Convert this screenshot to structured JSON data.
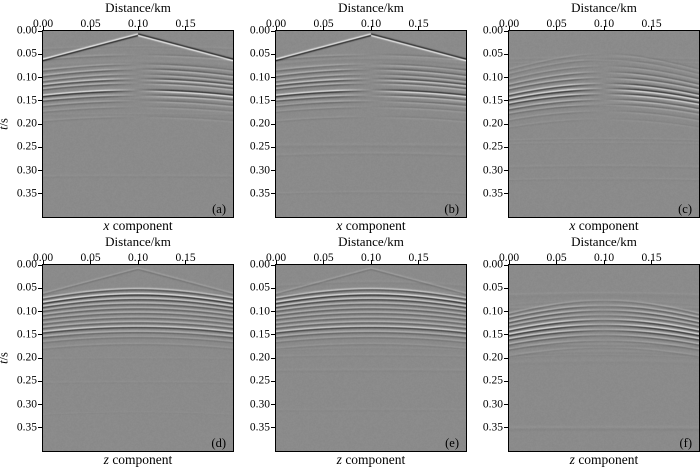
{
  "figure": {
    "x_axis": {
      "label": "Distance/km",
      "ticks": [
        "0.00",
        "0.05",
        "0.10",
        "0.15"
      ],
      "range": [
        0.0,
        0.2
      ]
    },
    "y_axis": {
      "label_italic": "t",
      "label_rest": "/s",
      "ticks": [
        "0.00",
        "0.05",
        "0.10",
        "0.15",
        "0.20",
        "0.25",
        "0.30",
        "0.35"
      ],
      "range": [
        0.0,
        0.4
      ]
    },
    "colors": {
      "plot_background": "#8b8b8b",
      "frame": "#000000",
      "text": "#000000",
      "page": "#ffffff"
    }
  },
  "chart_data": {
    "type": "heatmap",
    "subtype": "seismic-shot-gathers",
    "title": "",
    "xlabel": "Distance/km",
    "ylabel": "t/s",
    "x_range_km": [
      0.0,
      0.2
    ],
    "t_range_s": [
      0.0,
      0.4
    ],
    "source_x_km": 0.1,
    "grid": false,
    "legend": false,
    "render": {
      "freq_hz": 95,
      "bg_gray": 139,
      "contrast": 158,
      "noise_events": 9,
      "pixel_noise": 0.018
    },
    "panels": [
      {
        "label": "(a)",
        "component": "x",
        "caption_italic": "x",
        "caption_rest": " component",
        "polarity_flip": true,
        "amplitude_notch": "hard",
        "seed": 11,
        "events": [
          {
            "kind": "v",
            "t0": 0.008,
            "v": 1.85,
            "amp": 1.15
          },
          {
            "kind": "refl",
            "t0": 0.052,
            "v": 3.0,
            "amp": 0.18
          },
          {
            "kind": "refl",
            "t0": 0.072,
            "v": 2.2,
            "amp": 0.3
          },
          {
            "kind": "refl",
            "t0": 0.083,
            "v": 2.0,
            "amp": 0.5
          },
          {
            "kind": "refl",
            "t0": 0.094,
            "v": 1.9,
            "amp": 0.42
          },
          {
            "kind": "refl",
            "t0": 0.104,
            "v": 1.9,
            "amp": 0.75
          },
          {
            "kind": "refl",
            "t0": 0.113,
            "v": 1.85,
            "amp": 0.5
          },
          {
            "kind": "refl",
            "t0": 0.128,
            "v": 1.8,
            "amp": 1.05
          },
          {
            "kind": "refl",
            "t0": 0.139,
            "v": 1.8,
            "amp": 0.55
          },
          {
            "kind": "refl",
            "t0": 0.151,
            "v": 1.75,
            "amp": 0.3
          },
          {
            "kind": "refl",
            "t0": 0.164,
            "v": 1.75,
            "amp": 0.16
          },
          {
            "kind": "refl",
            "t0": 0.185,
            "v": 1.7,
            "amp": 0.1
          }
        ]
      },
      {
        "label": "(b)",
        "component": "x",
        "caption_italic": "x",
        "caption_rest": " component",
        "polarity_flip": true,
        "amplitude_notch": "hard",
        "seed": 23,
        "events": [
          {
            "kind": "v",
            "t0": 0.008,
            "v": 1.85,
            "amp": 1.12
          },
          {
            "kind": "refl",
            "t0": 0.052,
            "v": 3.0,
            "amp": 0.18
          },
          {
            "kind": "refl",
            "t0": 0.072,
            "v": 2.2,
            "amp": 0.3
          },
          {
            "kind": "refl",
            "t0": 0.083,
            "v": 2.0,
            "amp": 0.48
          },
          {
            "kind": "refl",
            "t0": 0.094,
            "v": 1.9,
            "amp": 0.42
          },
          {
            "kind": "refl",
            "t0": 0.104,
            "v": 1.9,
            "amp": 0.74
          },
          {
            "kind": "refl",
            "t0": 0.113,
            "v": 1.85,
            "amp": 0.5
          },
          {
            "kind": "refl",
            "t0": 0.128,
            "v": 1.8,
            "amp": 1.02
          },
          {
            "kind": "refl",
            "t0": 0.139,
            "v": 1.8,
            "amp": 0.55
          },
          {
            "kind": "refl",
            "t0": 0.151,
            "v": 1.75,
            "amp": 0.3
          },
          {
            "kind": "refl",
            "t0": 0.164,
            "v": 1.75,
            "amp": 0.16
          },
          {
            "kind": "refl",
            "t0": 0.185,
            "v": 1.7,
            "amp": 0.1
          }
        ]
      },
      {
        "label": "(c)",
        "component": "x",
        "caption_italic": "x",
        "caption_rest": " component",
        "polarity_flip": true,
        "amplitude_notch": "hard",
        "seed": 37,
        "events": [
          {
            "kind": "refl",
            "t0": 0.05,
            "v": 1.5,
            "amp": 0.14
          },
          {
            "kind": "refl",
            "t0": 0.062,
            "v": 1.45,
            "amp": 0.16
          },
          {
            "kind": "refl",
            "t0": 0.076,
            "v": 1.4,
            "amp": 0.22
          },
          {
            "kind": "refl",
            "t0": 0.089,
            "v": 1.35,
            "amp": 0.4
          },
          {
            "kind": "refl",
            "t0": 0.101,
            "v": 1.35,
            "amp": 0.5
          },
          {
            "kind": "refl",
            "t0": 0.114,
            "v": 1.3,
            "amp": 0.8
          },
          {
            "kind": "refl",
            "t0": 0.125,
            "v": 1.3,
            "amp": 1.0
          },
          {
            "kind": "refl",
            "t0": 0.136,
            "v": 1.3,
            "amp": 0.85
          },
          {
            "kind": "refl",
            "t0": 0.148,
            "v": 1.25,
            "amp": 0.5
          },
          {
            "kind": "refl",
            "t0": 0.159,
            "v": 1.25,
            "amp": 0.28
          },
          {
            "kind": "refl",
            "t0": 0.173,
            "v": 1.2,
            "amp": 0.15
          },
          {
            "kind": "refl",
            "t0": 0.19,
            "v": 1.2,
            "amp": 0.08
          }
        ]
      },
      {
        "label": "(d)",
        "component": "z",
        "caption_italic": "z",
        "caption_rest": " component",
        "polarity_flip": false,
        "amplitude_notch": "none",
        "seed": 51,
        "events": [
          {
            "kind": "v",
            "t0": 0.008,
            "v": 1.85,
            "amp": 0.22
          },
          {
            "kind": "refl",
            "t0": 0.052,
            "v": 2.0,
            "amp": 0.7
          },
          {
            "kind": "refl",
            "t0": 0.063,
            "v": 1.95,
            "amp": 1.05
          },
          {
            "kind": "refl",
            "t0": 0.073,
            "v": 1.9,
            "amp": 0.8
          },
          {
            "kind": "refl",
            "t0": 0.083,
            "v": 1.9,
            "amp": 0.55
          },
          {
            "kind": "refl",
            "t0": 0.093,
            "v": 1.85,
            "amp": 0.5
          },
          {
            "kind": "refl",
            "t0": 0.103,
            "v": 1.85,
            "amp": 0.45
          },
          {
            "kind": "refl",
            "t0": 0.113,
            "v": 1.8,
            "amp": 0.42
          },
          {
            "kind": "refl",
            "t0": 0.123,
            "v": 1.8,
            "amp": 0.5
          },
          {
            "kind": "refl",
            "t0": 0.133,
            "v": 1.75,
            "amp": 0.85
          },
          {
            "kind": "refl",
            "t0": 0.144,
            "v": 1.75,
            "amp": 0.45
          },
          {
            "kind": "refl",
            "t0": 0.155,
            "v": 1.7,
            "amp": 0.22
          },
          {
            "kind": "refl",
            "t0": 0.17,
            "v": 1.7,
            "amp": 0.12
          }
        ]
      },
      {
        "label": "(e)",
        "component": "z",
        "caption_italic": "z",
        "caption_rest": " component",
        "polarity_flip": false,
        "amplitude_notch": "none",
        "seed": 67,
        "events": [
          {
            "kind": "v",
            "t0": 0.008,
            "v": 1.85,
            "amp": 0.22
          },
          {
            "kind": "refl",
            "t0": 0.052,
            "v": 2.0,
            "amp": 0.7
          },
          {
            "kind": "refl",
            "t0": 0.063,
            "v": 1.95,
            "amp": 1.02
          },
          {
            "kind": "refl",
            "t0": 0.073,
            "v": 1.9,
            "amp": 0.8
          },
          {
            "kind": "refl",
            "t0": 0.083,
            "v": 1.9,
            "amp": 0.55
          },
          {
            "kind": "refl",
            "t0": 0.093,
            "v": 1.85,
            "amp": 0.5
          },
          {
            "kind": "refl",
            "t0": 0.103,
            "v": 1.85,
            "amp": 0.45
          },
          {
            "kind": "refl",
            "t0": 0.113,
            "v": 1.8,
            "amp": 0.42
          },
          {
            "kind": "refl",
            "t0": 0.123,
            "v": 1.8,
            "amp": 0.5
          },
          {
            "kind": "refl",
            "t0": 0.133,
            "v": 1.75,
            "amp": 0.83
          },
          {
            "kind": "refl",
            "t0": 0.144,
            "v": 1.75,
            "amp": 0.45
          },
          {
            "kind": "refl",
            "t0": 0.155,
            "v": 1.7,
            "amp": 0.22
          },
          {
            "kind": "refl",
            "t0": 0.17,
            "v": 1.7,
            "amp": 0.12
          }
        ]
      },
      {
        "label": "(f)",
        "component": "z",
        "caption_italic": "z",
        "caption_rest": " component",
        "polarity_flip": false,
        "amplitude_notch": "soft",
        "seed": 83,
        "events": [
          {
            "kind": "refl",
            "t0": 0.077,
            "v": 1.4,
            "amp": 0.3
          },
          {
            "kind": "refl",
            "t0": 0.088,
            "v": 1.4,
            "amp": 0.5
          },
          {
            "kind": "refl",
            "t0": 0.098,
            "v": 1.35,
            "amp": 0.62
          },
          {
            "kind": "refl",
            "t0": 0.108,
            "v": 1.35,
            "amp": 0.5
          },
          {
            "kind": "refl",
            "t0": 0.118,
            "v": 1.3,
            "amp": 0.9
          },
          {
            "kind": "refl",
            "t0": 0.129,
            "v": 1.3,
            "amp": 1.0
          },
          {
            "kind": "refl",
            "t0": 0.14,
            "v": 1.3,
            "amp": 0.8
          },
          {
            "kind": "refl",
            "t0": 0.151,
            "v": 1.25,
            "amp": 0.48
          },
          {
            "kind": "refl",
            "t0": 0.163,
            "v": 1.25,
            "amp": 0.26
          },
          {
            "kind": "refl",
            "t0": 0.178,
            "v": 1.2,
            "amp": 0.13
          }
        ]
      }
    ]
  }
}
